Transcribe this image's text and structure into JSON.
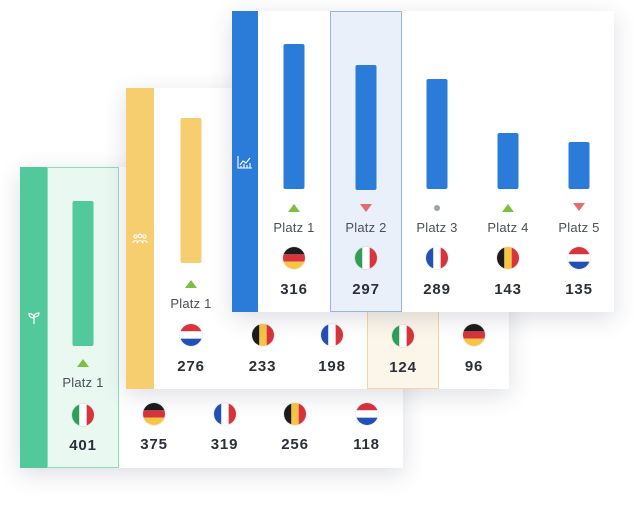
{
  "colors": {
    "green": "#52c99a",
    "yellow": "#f6cd6f",
    "blue": "#2b7bd9",
    "trend_up": "#7bc043",
    "trend_down": "#e26b6b",
    "trend_same": "#9aa3b2"
  },
  "cards": [
    {
      "id": "green",
      "strip_icon": "sprout-icon",
      "rank_label": "Platz 1",
      "top_rank_trend": "up",
      "top_bar_fraction": 1.0,
      "entries": [
        {
          "country": "Italy",
          "flag": "italy-flag",
          "score": "401"
        },
        {
          "country": "Germany",
          "flag": "germany-flag",
          "score": "375"
        },
        {
          "country": "France",
          "flag": "france-flag",
          "score": "319"
        },
        {
          "country": "Belgium",
          "flag": "belgium-flag",
          "score": "256"
        },
        {
          "country": "Netherlands",
          "flag": "netherlands-flag",
          "score": "118"
        }
      ]
    },
    {
      "id": "yellow",
      "strip_icon": "people-group-icon",
      "rank_label": "Platz 1",
      "top_rank_trend": "up",
      "top_bar_fraction": 1.0,
      "entries": [
        {
          "country": "Netherlands",
          "flag": "netherlands-flag",
          "score": "276"
        },
        {
          "country": "Belgium",
          "flag": "belgium-flag",
          "score": "233"
        },
        {
          "country": "France",
          "flag": "france-flag",
          "score": "198"
        },
        {
          "country": "Italy",
          "flag": "italy-flag",
          "score": "124"
        },
        {
          "country": "Germany",
          "flag": "germany-flag",
          "score": "96"
        }
      ]
    },
    {
      "id": "blue",
      "strip_icon": "line-chart-icon",
      "selected_index": 1,
      "entries": [
        {
          "rank": "Platz 1",
          "trend": "up",
          "country": "Germany",
          "flag": "germany-flag",
          "score": "316",
          "bar": 316
        },
        {
          "rank": "Platz 2",
          "trend": "down",
          "country": "Italy",
          "flag": "italy-flag",
          "score": "297",
          "bar": 297
        },
        {
          "rank": "Platz 3",
          "trend": "same",
          "country": "France",
          "flag": "france-flag",
          "score": "289",
          "bar": 289
        },
        {
          "rank": "Platz 4",
          "trend": "up",
          "country": "Belgium",
          "flag": "belgium-flag",
          "score": "143",
          "bar": 143
        },
        {
          "rank": "Platz 5",
          "trend": "down",
          "country": "Netherlands",
          "flag": "netherlands-flag",
          "score": "135",
          "bar": 135
        }
      ]
    }
  ]
}
